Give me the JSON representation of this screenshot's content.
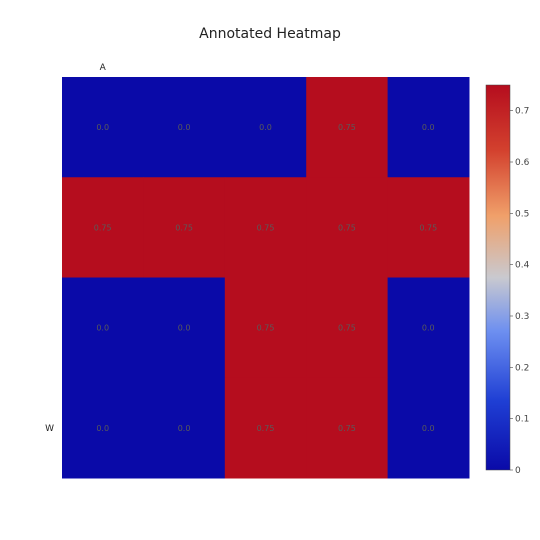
{
  "chart_data": {
    "type": "heatmap",
    "title": "Annotated Heatmap",
    "y_tick_labels": [
      "A",
      "W"
    ],
    "z": [
      [
        0.0,
        0.0,
        0.0,
        0.75,
        0.0
      ],
      [
        0.75,
        0.75,
        0.75,
        0.75,
        0.75
      ],
      [
        0.0,
        0.0,
        0.75,
        0.75,
        0.0
      ],
      [
        0.0,
        0.0,
        0.75,
        0.75,
        0.0
      ]
    ],
    "annotations": [
      [
        "0.0",
        "0.0",
        "0.0",
        "0.75",
        "0.0"
      ],
      [
        "0.75",
        "0.75",
        "0.75",
        "0.75",
        "0.75"
      ],
      [
        "0.0",
        "0.0",
        "0.75",
        "0.75",
        "0.0"
      ],
      [
        "0.0",
        "0.0",
        "0.75",
        "0.75",
        "0.0"
      ]
    ],
    "zlim": [
      0,
      0.75
    ],
    "colorscale": "RdBu-like (blue to red)",
    "colors": {
      "low": "#0a0aa8",
      "high": "#b50d1e"
    },
    "colorbar": {
      "ticks": [
        "0",
        "0.1",
        "0.2",
        "0.3",
        "0.4",
        "0.5",
        "0.6",
        "0.7"
      ],
      "tick_values": [
        0,
        0.1,
        0.2,
        0.3,
        0.4,
        0.5,
        0.6,
        0.7
      ]
    }
  }
}
